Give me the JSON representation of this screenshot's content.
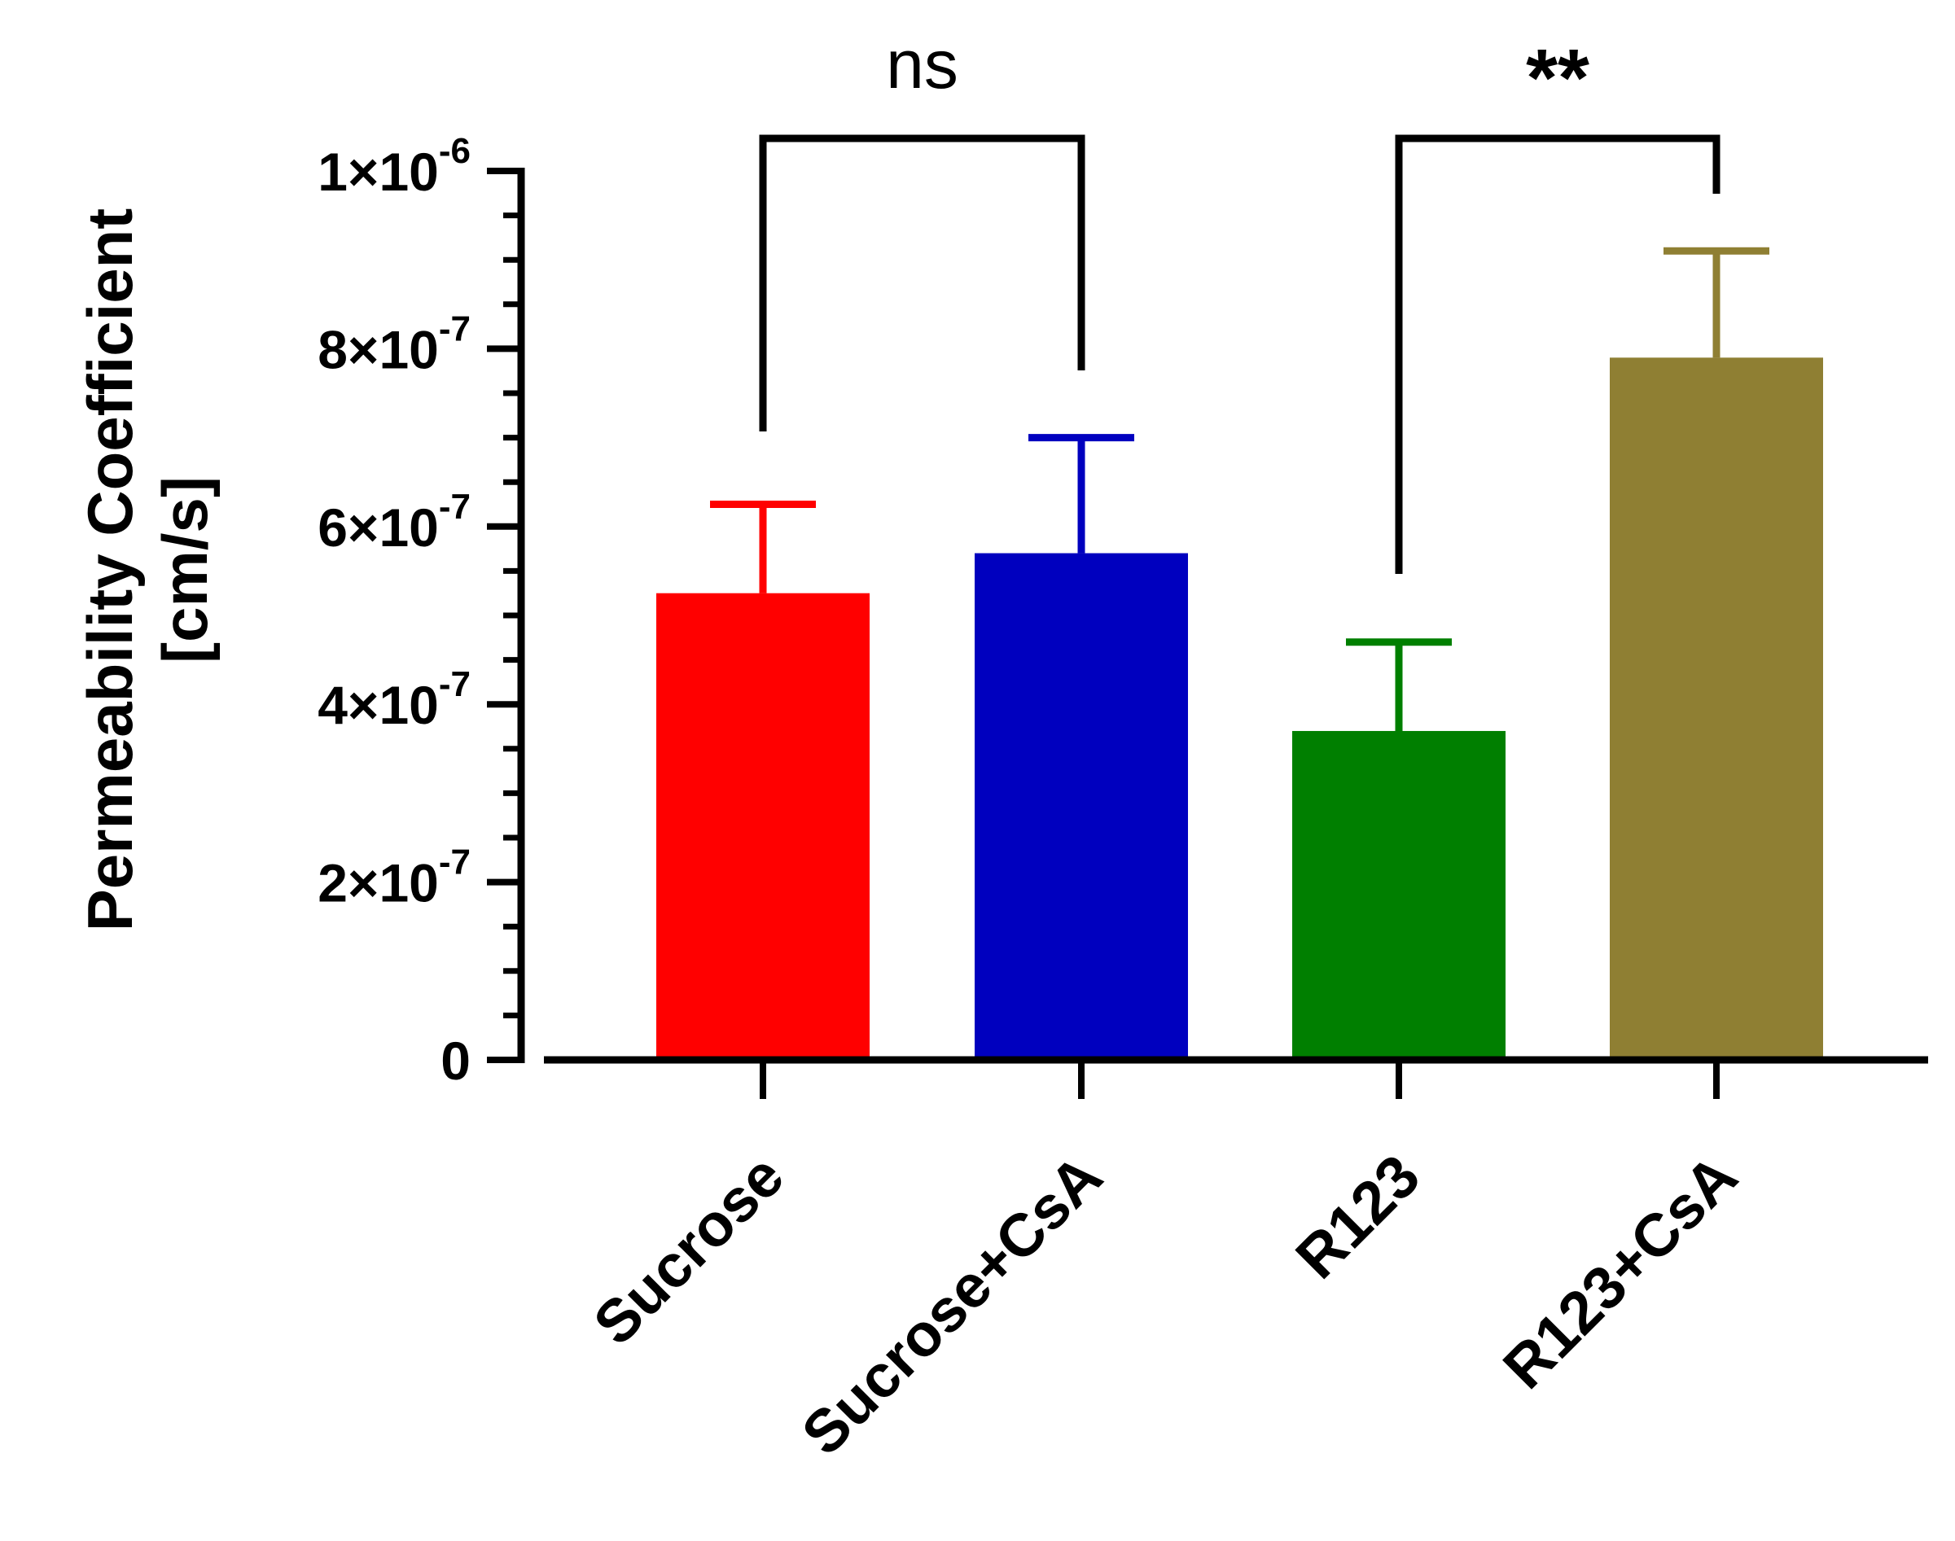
{
  "chart_data": {
    "type": "bar",
    "ylabel": [
      "Permeability Coefficient",
      "[cm/s]"
    ],
    "categories": [
      "Sucrose",
      "Sucrose+CsA",
      "R123",
      "R123+CsA"
    ],
    "values": [
      5.25e-07,
      5.7e-07,
      3.7e-07,
      7.9e-07
    ],
    "error_upper": [
      6.25e-07,
      7e-07,
      4.7e-07,
      9.1e-07
    ],
    "colors": [
      "#ff0000",
      "#0000bf",
      "#007f00",
      "#8f7f33"
    ],
    "ylim": [
      0,
      1e-06
    ],
    "yticks": [
      {
        "value": 0,
        "mantissa": "0",
        "exponent": ""
      },
      {
        "value": 2e-07,
        "mantissa": "2×10",
        "exponent": "-7"
      },
      {
        "value": 4e-07,
        "mantissa": "4×10",
        "exponent": "-7"
      },
      {
        "value": 6e-07,
        "mantissa": "6×10",
        "exponent": "-7"
      },
      {
        "value": 8e-07,
        "mantissa": "8×10",
        "exponent": "-7"
      },
      {
        "value": 1e-06,
        "mantissa": "1×10",
        "exponent": "-6"
      }
    ],
    "minor_tick_step": 5e-08,
    "comparisons": [
      {
        "from": 0,
        "to": 1,
        "label": "ns"
      },
      {
        "from": 2,
        "to": 3,
        "label": "**"
      }
    ],
    "grid": false,
    "legend": "none"
  }
}
